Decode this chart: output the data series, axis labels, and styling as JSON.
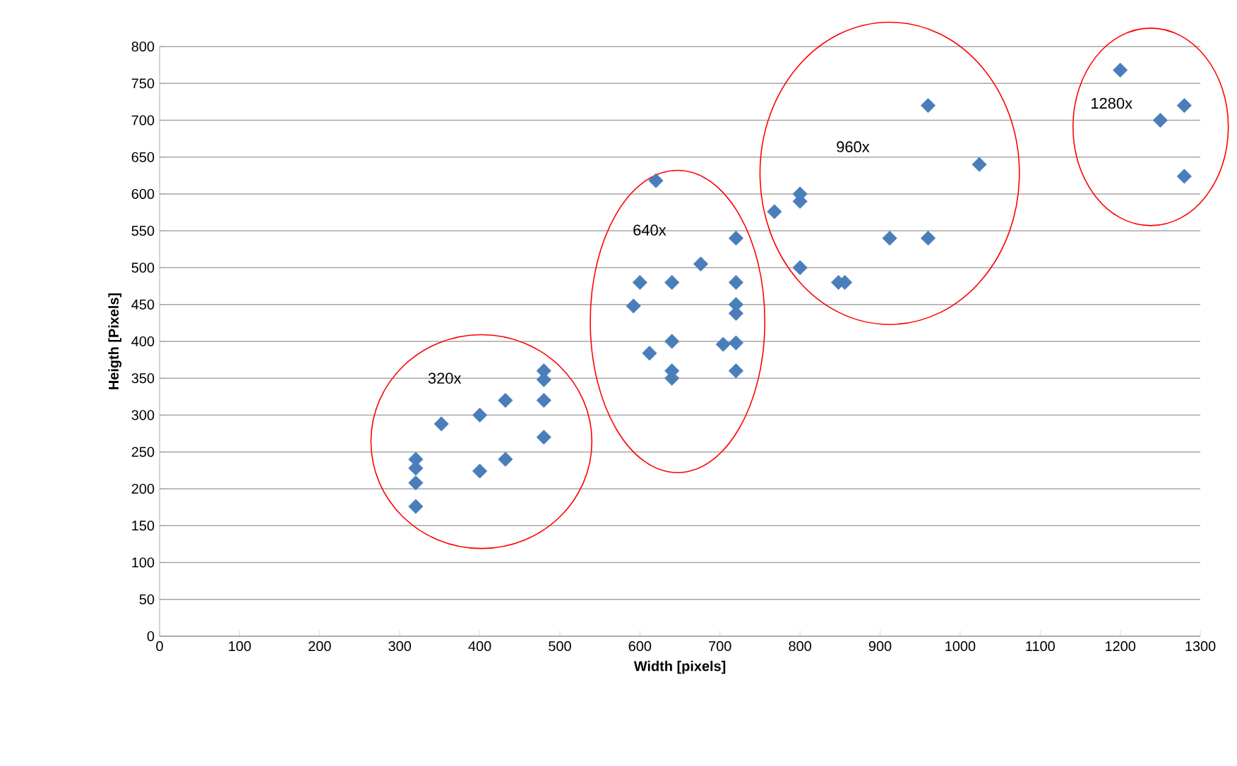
{
  "chart_data": {
    "type": "scatter",
    "xlabel": "Width [pixels]",
    "ylabel": "Heigth [Pixels]",
    "x": [
      320,
      320,
      320,
      320,
      352,
      400,
      432,
      480,
      480,
      480,
      480,
      400,
      432,
      620,
      600,
      640,
      592,
      676,
      720,
      720,
      720,
      720,
      720,
      704,
      612,
      640,
      640,
      640,
      720,
      960,
      1024,
      800,
      800,
      768,
      800,
      912,
      960,
      848,
      856,
      1200,
      1250,
      1280,
      1280
    ],
    "values": [
      240,
      228,
      208,
      176,
      288,
      300,
      320,
      360,
      348,
      320,
      270,
      224,
      240,
      618,
      480,
      480,
      448,
      505,
      540,
      480,
      450,
      438,
      398,
      396,
      384,
      400,
      360,
      350,
      360,
      720,
      640,
      600,
      590,
      576,
      500,
      540,
      540,
      480,
      480,
      768,
      700,
      720,
      624
    ],
    "color": "#4a7ebb",
    "marker": "diamond",
    "grid": "y",
    "xlim": [
      0,
      1300
    ],
    "xticks": [
      0,
      100,
      200,
      300,
      400,
      500,
      600,
      700,
      800,
      900,
      1000,
      1100,
      1200,
      1300
    ],
    "ylim": [
      0,
      800
    ],
    "yticks": [
      0,
      50,
      100,
      150,
      200,
      250,
      300,
      350,
      400,
      450,
      500,
      550,
      600,
      650,
      700,
      750,
      800
    ],
    "annotations": [
      "320x",
      "640x",
      "960x",
      "1280x"
    ]
  }
}
